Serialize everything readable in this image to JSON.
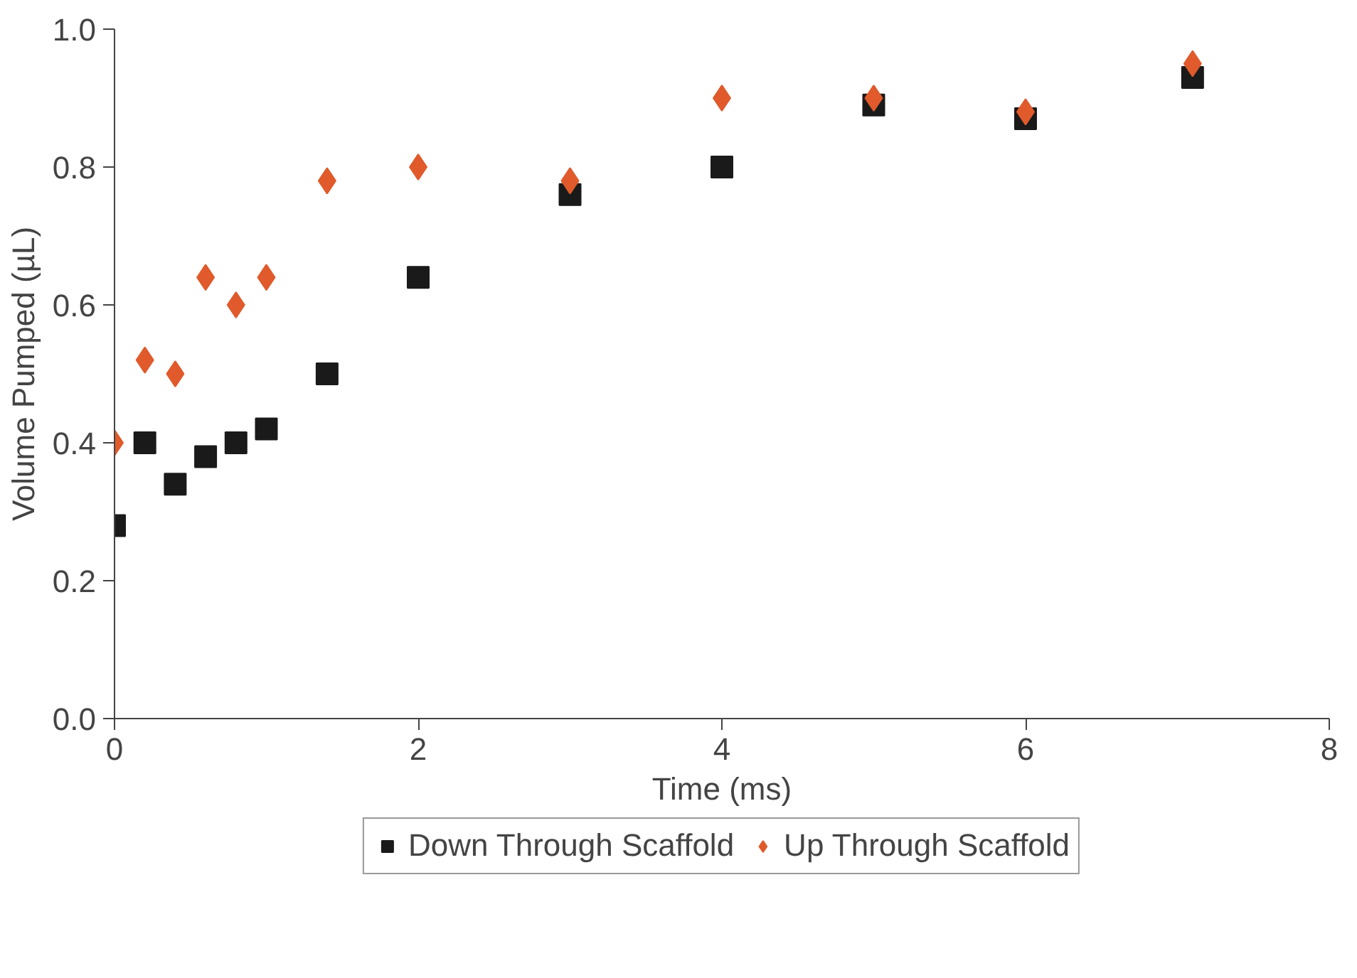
{
  "chart_data": {
    "type": "scatter",
    "xlabel": "Time (ms)",
    "ylabel": "Volume Pumped (µL)",
    "xlim": [
      0,
      8
    ],
    "xticks": [
      0,
      2,
      4,
      6,
      8
    ],
    "ylim": [
      0,
      1
    ],
    "yticks": [
      {
        "value": 0,
        "label": "0.0"
      },
      {
        "value": 0.2,
        "label": "0.2"
      },
      {
        "value": 0.4,
        "label": "0.4"
      },
      {
        "value": 0.6,
        "label": "0.6"
      },
      {
        "value": 0.8,
        "label": "0.8"
      },
      {
        "value": 1,
        "label": "1.0"
      }
    ],
    "grid": false,
    "legend": "bottom",
    "series": [
      {
        "name": "Down Through Scaffold",
        "color": "#1a1a1a",
        "marker": "square",
        "x": [
          0,
          0.2,
          0.4,
          0.6,
          0.8,
          1.0,
          1.4,
          2.0,
          3.0,
          4.0,
          5.0,
          6.0,
          7.1
        ],
        "values": [
          0.28,
          0.4,
          0.34,
          0.38,
          0.4,
          0.42,
          0.5,
          0.64,
          0.76,
          0.8,
          0.89,
          0.87,
          0.93
        ]
      },
      {
        "name": "Up Through Scaffold",
        "color": "#e05a2b",
        "marker": "diamond",
        "x": [
          0,
          0.2,
          0.4,
          0.6,
          0.8,
          1.0,
          1.4,
          2.0,
          3.0,
          4.0,
          5.0,
          6.0,
          7.1
        ],
        "values": [
          0.4,
          0.52,
          0.5,
          0.64,
          0.6,
          0.64,
          0.78,
          0.8,
          0.78,
          0.9,
          0.9,
          0.88,
          0.95
        ]
      }
    ]
  }
}
